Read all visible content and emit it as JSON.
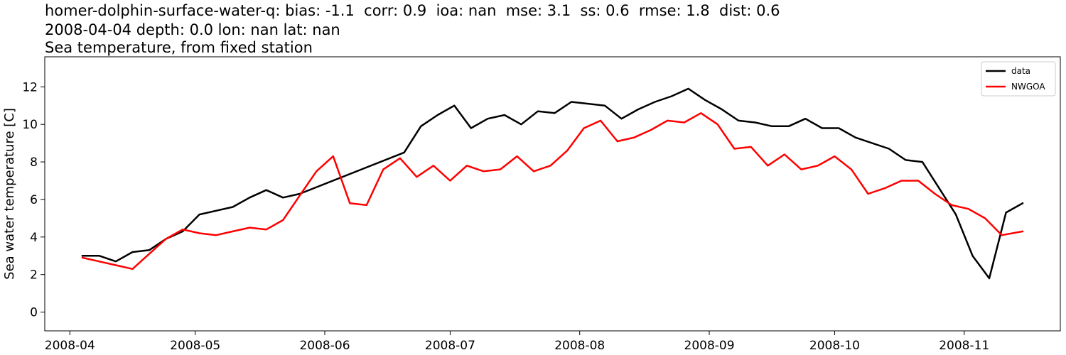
{
  "title": {
    "line1": "homer-dolphin-surface-water-q: bias: -1.1  corr: 0.9  ioa: nan  mse: 3.1  ss: 0.6  rmse: 1.8  dist: 0.6",
    "line2": "2008-04-04 depth: 0.0 lon: nan lat: nan",
    "line3": "Sea temperature, from fixed station"
  },
  "chart_data": {
    "type": "line",
    "xlabel": "",
    "ylabel": "Sea water temperature [C]",
    "xlim": [
      "2008-03-26",
      "2008-11-24"
    ],
    "ylim": [
      -1.0,
      13.6
    ],
    "yticks": [
      0,
      2,
      4,
      6,
      8,
      10,
      12
    ],
    "xticks": [
      "2008-04",
      "2008-05",
      "2008-06",
      "2008-07",
      "2008-08",
      "2008-09",
      "2008-10",
      "2008-11"
    ],
    "legend_position": "top-right",
    "grid": false,
    "series": [
      {
        "name": "data",
        "color": "#000000",
        "x": [
          "2008-04-04",
          "2008-04-08",
          "2008-04-12",
          "2008-04-16",
          "2008-04-20",
          "2008-04-24",
          "2008-04-28",
          "2008-05-02",
          "2008-05-06",
          "2008-05-10",
          "2008-05-14",
          "2008-05-18",
          "2008-05-22",
          "2008-05-26",
          "2008-06-20",
          "2008-06-24",
          "2008-06-28",
          "2008-07-02",
          "2008-07-06",
          "2008-07-10",
          "2008-07-14",
          "2008-07-18",
          "2008-07-22",
          "2008-07-26",
          "2008-07-30",
          "2008-08-03",
          "2008-08-07",
          "2008-08-11",
          "2008-08-15",
          "2008-08-19",
          "2008-08-23",
          "2008-08-27",
          "2008-08-31",
          "2008-09-04",
          "2008-09-08",
          "2008-09-12",
          "2008-09-16",
          "2008-09-20",
          "2008-09-24",
          "2008-09-28",
          "2008-10-02",
          "2008-10-06",
          "2008-10-14",
          "2008-10-18",
          "2008-10-22",
          "2008-10-26",
          "2008-10-30",
          "2008-11-03",
          "2008-11-07",
          "2008-11-11",
          "2008-11-15"
        ],
        "values": [
          3.0,
          3.0,
          2.7,
          3.2,
          3.3,
          3.9,
          4.3,
          5.2,
          5.4,
          5.6,
          6.1,
          6.5,
          6.1,
          6.3,
          8.5,
          9.9,
          10.5,
          11.0,
          9.8,
          10.3,
          10.5,
          10.0,
          10.7,
          10.6,
          11.2,
          11.1,
          11.0,
          10.3,
          10.8,
          11.2,
          11.5,
          11.9,
          11.3,
          10.8,
          10.2,
          10.1,
          9.9,
          9.9,
          10.3,
          9.8,
          9.8,
          9.3,
          8.7,
          8.1,
          8.0,
          6.6,
          5.2,
          3.0,
          1.8,
          5.3,
          5.8
        ]
      },
      {
        "name": "NWGOA",
        "color": "#ff0000",
        "x": [
          "2008-04-04",
          "2008-04-08",
          "2008-04-12",
          "2008-04-16",
          "2008-04-20",
          "2008-04-24",
          "2008-04-28",
          "2008-05-02",
          "2008-05-06",
          "2008-05-10",
          "2008-05-14",
          "2008-05-18",
          "2008-05-22",
          "2008-05-26",
          "2008-05-30",
          "2008-06-03",
          "2008-06-07",
          "2008-06-11",
          "2008-06-15",
          "2008-06-19",
          "2008-06-23",
          "2008-06-27",
          "2008-07-01",
          "2008-07-05",
          "2008-07-09",
          "2008-07-13",
          "2008-07-17",
          "2008-07-21",
          "2008-07-25",
          "2008-07-29",
          "2008-08-02",
          "2008-08-06",
          "2008-08-10",
          "2008-08-14",
          "2008-08-18",
          "2008-08-22",
          "2008-08-26",
          "2008-08-30",
          "2008-09-03",
          "2008-09-07",
          "2008-09-11",
          "2008-09-15",
          "2008-09-19",
          "2008-09-23",
          "2008-09-27",
          "2008-10-01",
          "2008-10-05",
          "2008-10-09",
          "2008-10-13",
          "2008-10-17",
          "2008-10-21",
          "2008-10-25",
          "2008-10-29",
          "2008-11-02",
          "2008-11-06",
          "2008-11-10",
          "2008-11-15"
        ],
        "values": [
          2.9,
          2.7,
          2.5,
          2.3,
          3.1,
          3.9,
          4.4,
          4.2,
          4.1,
          4.3,
          4.5,
          4.4,
          4.9,
          6.2,
          7.5,
          8.3,
          5.8,
          5.7,
          7.6,
          8.2,
          7.2,
          7.8,
          7.0,
          7.8,
          7.5,
          7.6,
          8.3,
          7.5,
          7.8,
          8.6,
          9.8,
          10.2,
          9.1,
          9.3,
          9.7,
          10.2,
          10.1,
          10.6,
          10.0,
          8.7,
          8.8,
          7.8,
          8.4,
          7.6,
          7.8,
          8.3,
          7.6,
          6.3,
          6.6,
          7.0,
          7.0,
          6.3,
          5.7,
          5.5,
          5.0,
          4.1,
          4.3
        ]
      }
    ]
  }
}
